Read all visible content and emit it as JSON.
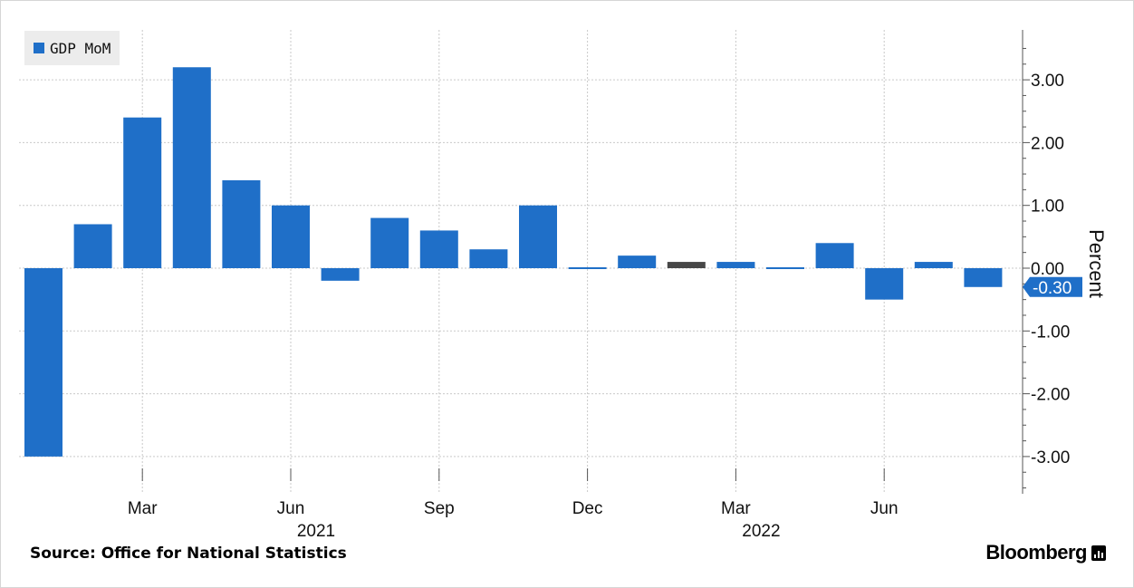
{
  "legend": {
    "label": "GDP MoM"
  },
  "source": "Source: Office for National Statistics",
  "brand": "Bloomberg",
  "colors": {
    "bar": "#1f6fc8",
    "highlight": "#474747",
    "label_bg": "#1f6fc8"
  },
  "chart_data": {
    "type": "bar",
    "series": [
      {
        "name": "GDP MoM",
        "dates": [
          "2021-01",
          "2021-02",
          "2021-03",
          "2021-04",
          "2021-05",
          "2021-06",
          "2021-07",
          "2021-08",
          "2021-09",
          "2021-10",
          "2021-11",
          "2021-12",
          "2022-01",
          "2022-02",
          "2022-03",
          "2022-04",
          "2022-05",
          "2022-06",
          "2022-07",
          "2022-08"
        ],
        "values": [
          -3.0,
          0.7,
          2.4,
          3.2,
          1.4,
          1.0,
          -0.2,
          0.8,
          0.6,
          0.3,
          1.0,
          0.0,
          0.2,
          0.1,
          0.1,
          0.0,
          0.4,
          -0.5,
          0.1,
          -0.3
        ]
      }
    ],
    "highlight_date": "2022-02",
    "ylabel": "Percent",
    "ylim": [
      -3.6,
      3.8
    ],
    "yticks": [
      3.0,
      2.0,
      1.0,
      0.0,
      -1.0,
      -2.0,
      -3.0
    ],
    "ytick_labels": [
      "3.00",
      "2.00",
      "1.00",
      "0.00",
      "-1.00",
      "-2.00",
      "-3.00"
    ],
    "xticks": [
      {
        "date": "2021-03",
        "label": "Mar"
      },
      {
        "date": "2021-06",
        "label": "Jun"
      },
      {
        "date": "2021-09",
        "label": "Sep"
      },
      {
        "date": "2021-12",
        "label": "Dec"
      },
      {
        "date": "2022-03",
        "label": "Mar"
      },
      {
        "date": "2022-06",
        "label": "Jun"
      }
    ],
    "year_labels": [
      {
        "date": "2021-06",
        "label": "2021"
      },
      {
        "date": "2022-03",
        "label": "2022"
      }
    ],
    "last_value": {
      "value": -0.3,
      "label": "-0.30"
    },
    "grid": true,
    "legend_position": "top-left"
  }
}
